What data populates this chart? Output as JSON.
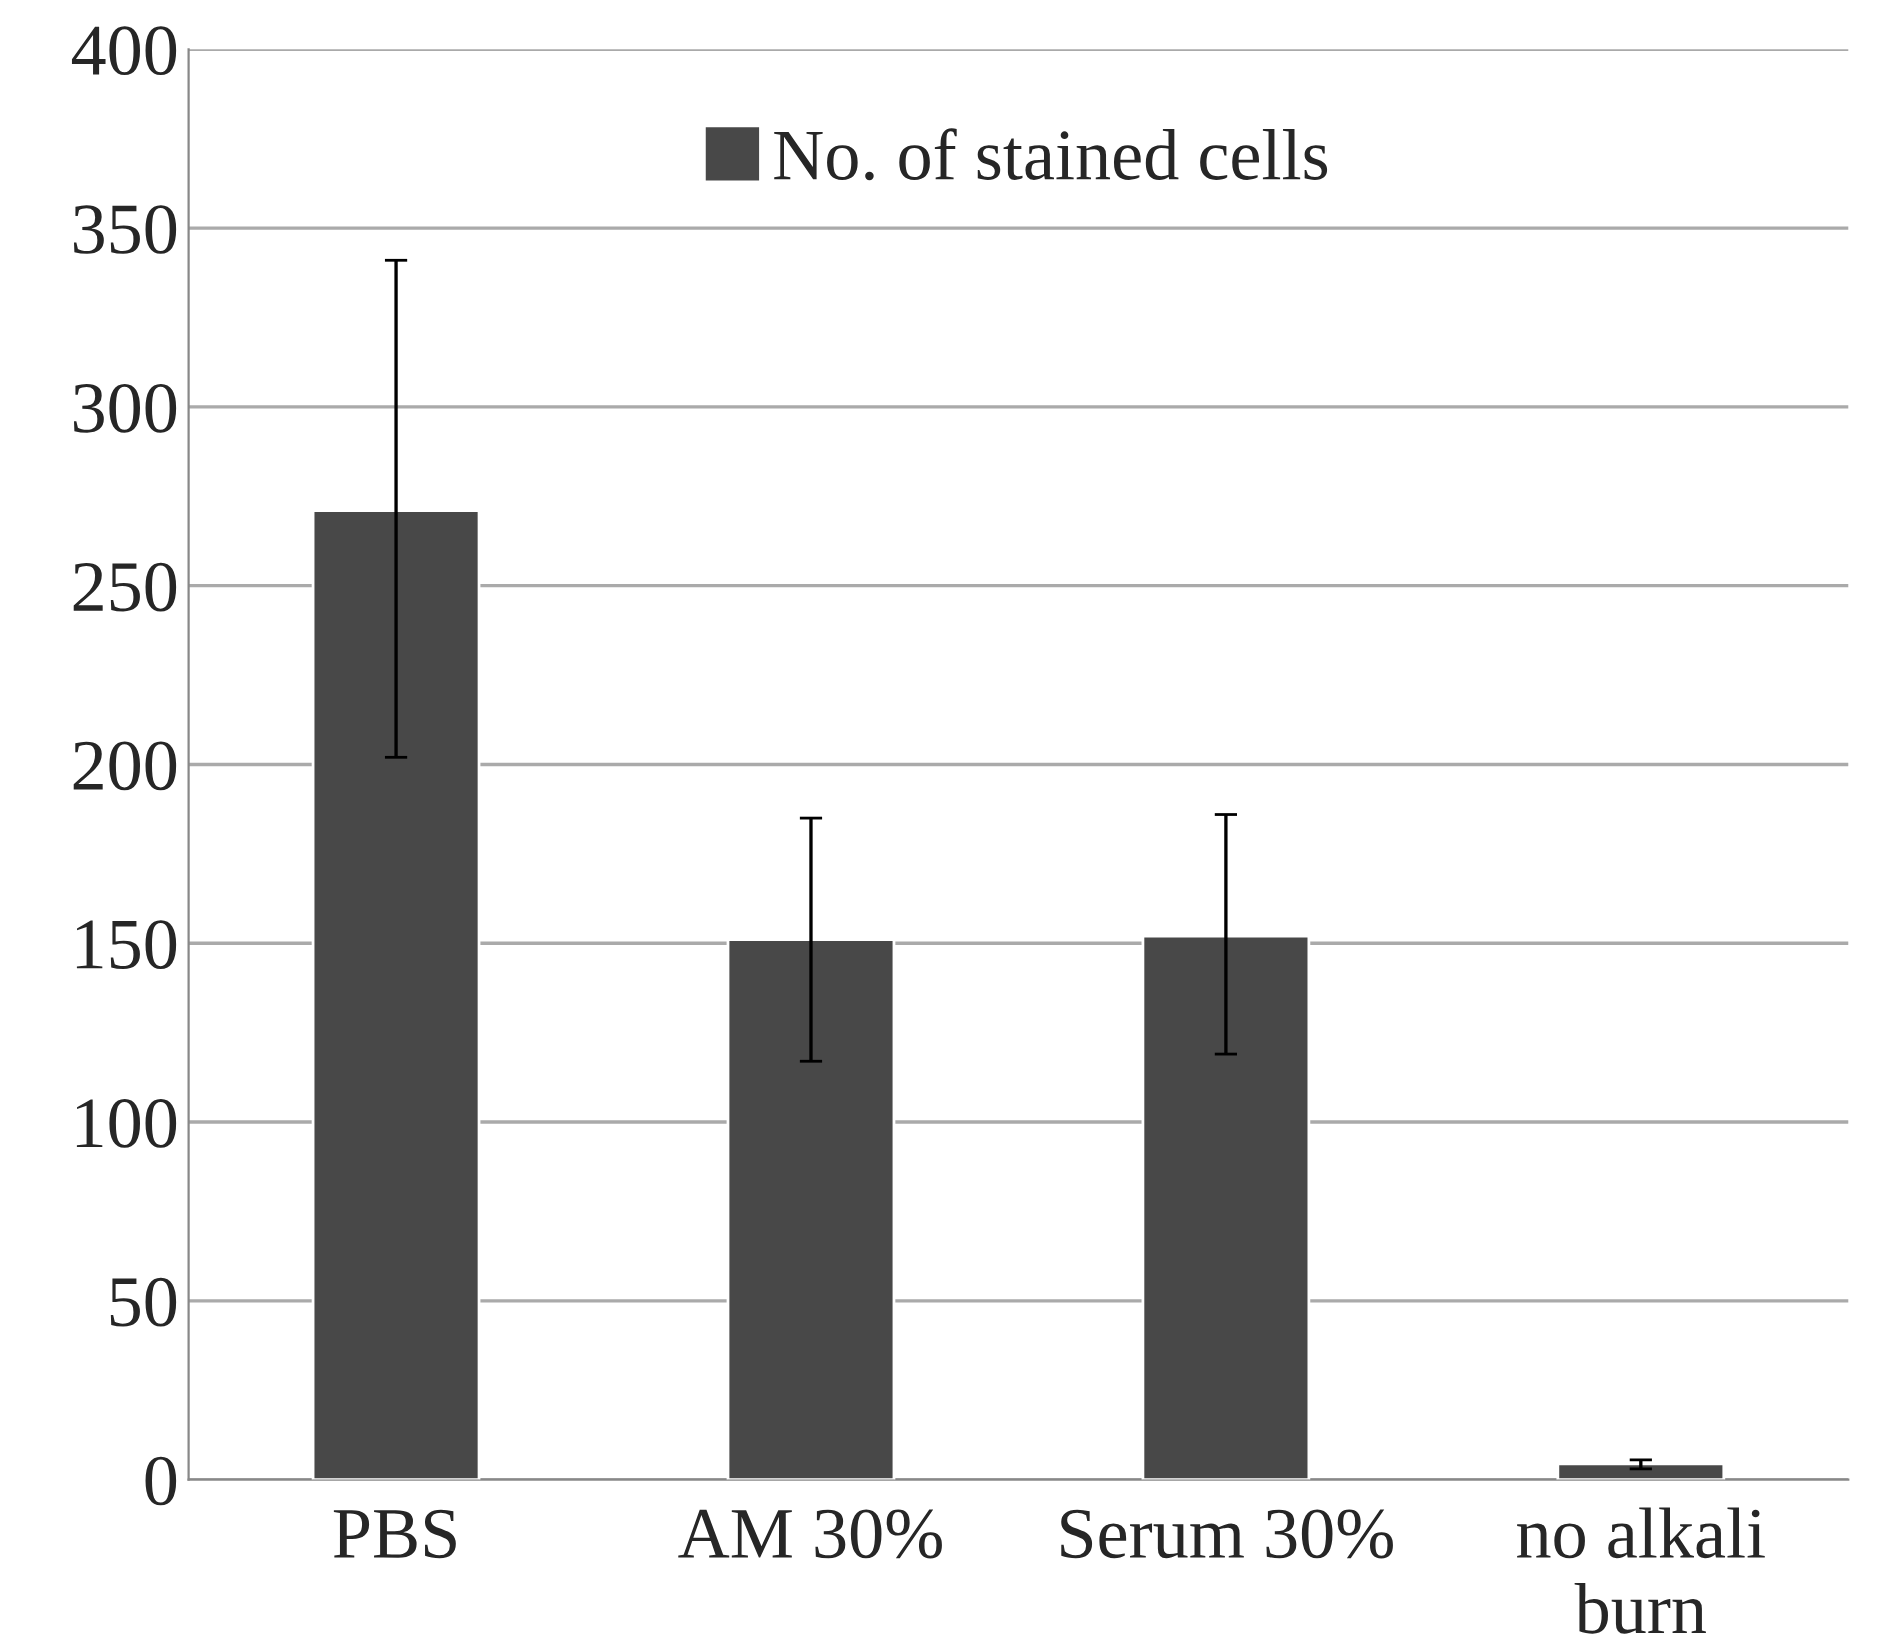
{
  "chart_data": {
    "type": "bar",
    "categories": [
      "PBS",
      "AM 30%",
      "Serum 30%",
      "no alkali\nburn"
    ],
    "series": [
      {
        "name": "No. of stained cells",
        "color": "#484848",
        "values": [
          271,
          151,
          152,
          4.4
        ],
        "errors": [
          [
            202,
            341
          ],
          [
            117,
            185
          ],
          [
            119,
            186
          ],
          [
            3,
            5.5
          ]
        ]
      }
    ],
    "ylim": [
      0,
      400
    ],
    "yticks": [
      0,
      50,
      100,
      150,
      200,
      250,
      300,
      350,
      400
    ],
    "grid": "y",
    "legend": "top"
  }
}
